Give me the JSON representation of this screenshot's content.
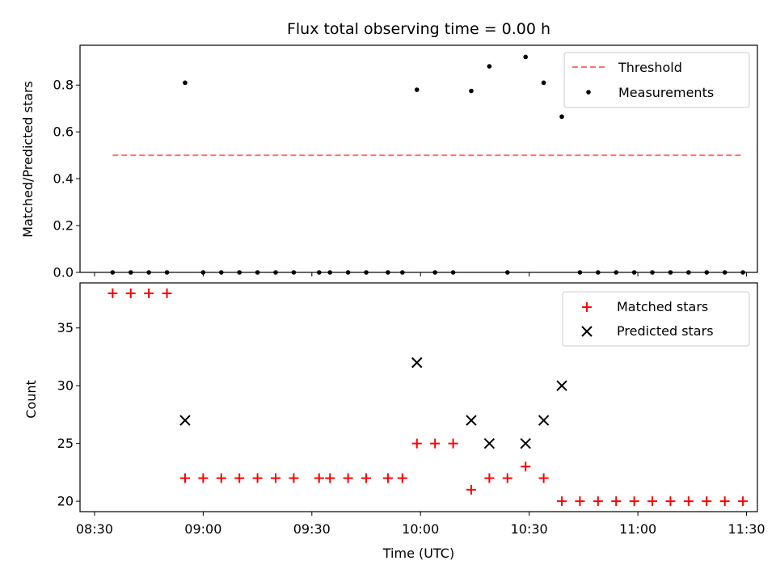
{
  "chart_data": [
    {
      "type": "scatter",
      "title": "Flux total observing time = 0.00 h",
      "ylabel": "Matched/Predicted stars",
      "xlabel": "",
      "xlim": [
        "08:26",
        "11:33"
      ],
      "ylim": [
        0,
        0.97
      ],
      "yticks": [
        0.0,
        0.2,
        0.4,
        0.6,
        0.8
      ],
      "ytick_labels": [
        "0.0",
        "0.2",
        "0.4",
        "0.6",
        "0.8"
      ],
      "legend_position": "upper right",
      "series": [
        {
          "name": "Threshold",
          "kind": "dashed-line",
          "color": "#ff7070",
          "points": [
            {
              "t": "08:35",
              "y": 0.5
            },
            {
              "t": "11:29",
              "y": 0.5
            }
          ]
        },
        {
          "name": "Measurements",
          "kind": "dots",
          "color": "#000000",
          "points": [
            {
              "t": "08:35",
              "y": 0
            },
            {
              "t": "08:40",
              "y": 0
            },
            {
              "t": "08:45",
              "y": 0
            },
            {
              "t": "08:50",
              "y": 0
            },
            {
              "t": "08:55",
              "y": 0.81
            },
            {
              "t": "09:00",
              "y": 0
            },
            {
              "t": "09:05",
              "y": 0
            },
            {
              "t": "09:10",
              "y": 0
            },
            {
              "t": "09:15",
              "y": 0
            },
            {
              "t": "09:20",
              "y": 0
            },
            {
              "t": "09:25",
              "y": 0
            },
            {
              "t": "09:32",
              "y": 0
            },
            {
              "t": "09:35",
              "y": 0
            },
            {
              "t": "09:40",
              "y": 0
            },
            {
              "t": "09:45",
              "y": 0
            },
            {
              "t": "09:51",
              "y": 0
            },
            {
              "t": "09:55",
              "y": 0
            },
            {
              "t": "09:59",
              "y": 0.78
            },
            {
              "t": "10:04",
              "y": 0
            },
            {
              "t": "10:09",
              "y": 0
            },
            {
              "t": "10:14",
              "y": 0.775
            },
            {
              "t": "10:19",
              "y": 0.88
            },
            {
              "t": "10:24",
              "y": 0
            },
            {
              "t": "10:29",
              "y": 0.92
            },
            {
              "t": "10:34",
              "y": 0.81
            },
            {
              "t": "10:39",
              "y": 0.665
            },
            {
              "t": "10:44",
              "y": 0
            },
            {
              "t": "10:49",
              "y": 0
            },
            {
              "t": "10:54",
              "y": 0
            },
            {
              "t": "10:59",
              "y": 0
            },
            {
              "t": "11:04",
              "y": 0
            },
            {
              "t": "11:09",
              "y": 0
            },
            {
              "t": "11:14",
              "y": 0
            },
            {
              "t": "11:19",
              "y": 0
            },
            {
              "t": "11:24",
              "y": 0
            },
            {
              "t": "11:29",
              "y": 0
            }
          ]
        }
      ]
    },
    {
      "type": "scatter",
      "title": "",
      "ylabel": "Count",
      "xlabel": "Time (UTC)",
      "xlim": [
        "08:26",
        "11:33"
      ],
      "ylim": [
        19.1,
        38.9
      ],
      "yticks": [
        20,
        25,
        30,
        35
      ],
      "ytick_labels": [
        "20",
        "25",
        "30",
        "35"
      ],
      "xticks": [
        "08:30",
        "09:00",
        "09:30",
        "10:00",
        "10:30",
        "11:00",
        "11:30"
      ],
      "xtick_labels": [
        "08:30",
        "09:00",
        "09:30",
        "10:00",
        "10:30",
        "11:00",
        "11:30"
      ],
      "legend_position": "upper right",
      "series": [
        {
          "name": "Matched stars",
          "kind": "plus",
          "color": "#ff0000",
          "points": [
            {
              "t": "08:35",
              "y": 38
            },
            {
              "t": "08:40",
              "y": 38
            },
            {
              "t": "08:45",
              "y": 38
            },
            {
              "t": "08:50",
              "y": 38
            },
            {
              "t": "08:55",
              "y": 22
            },
            {
              "t": "09:00",
              "y": 22
            },
            {
              "t": "09:05",
              "y": 22
            },
            {
              "t": "09:10",
              "y": 22
            },
            {
              "t": "09:15",
              "y": 22
            },
            {
              "t": "09:20",
              "y": 22
            },
            {
              "t": "09:25",
              "y": 22
            },
            {
              "t": "09:32",
              "y": 22
            },
            {
              "t": "09:35",
              "y": 22
            },
            {
              "t": "09:40",
              "y": 22
            },
            {
              "t": "09:45",
              "y": 22
            },
            {
              "t": "09:51",
              "y": 22
            },
            {
              "t": "09:55",
              "y": 22
            },
            {
              "t": "09:59",
              "y": 25
            },
            {
              "t": "10:04",
              "y": 25
            },
            {
              "t": "10:09",
              "y": 25
            },
            {
              "t": "10:14",
              "y": 21
            },
            {
              "t": "10:19",
              "y": 22
            },
            {
              "t": "10:24",
              "y": 22
            },
            {
              "t": "10:29",
              "y": 23
            },
            {
              "t": "10:34",
              "y": 22
            },
            {
              "t": "10:39",
              "y": 20
            },
            {
              "t": "10:44",
              "y": 20
            },
            {
              "t": "10:49",
              "y": 20
            },
            {
              "t": "10:54",
              "y": 20
            },
            {
              "t": "10:59",
              "y": 20
            },
            {
              "t": "11:04",
              "y": 20
            },
            {
              "t": "11:09",
              "y": 20
            },
            {
              "t": "11:14",
              "y": 20
            },
            {
              "t": "11:19",
              "y": 20
            },
            {
              "t": "11:24",
              "y": 20
            },
            {
              "t": "11:29",
              "y": 20
            }
          ]
        },
        {
          "name": "Predicted stars",
          "kind": "x",
          "color": "#000000",
          "points": [
            {
              "t": "08:55",
              "y": 27
            },
            {
              "t": "09:59",
              "y": 32
            },
            {
              "t": "10:14",
              "y": 27
            },
            {
              "t": "10:19",
              "y": 25
            },
            {
              "t": "10:29",
              "y": 25
            },
            {
              "t": "10:34",
              "y": 27
            },
            {
              "t": "10:39",
              "y": 30
            }
          ]
        }
      ]
    }
  ]
}
